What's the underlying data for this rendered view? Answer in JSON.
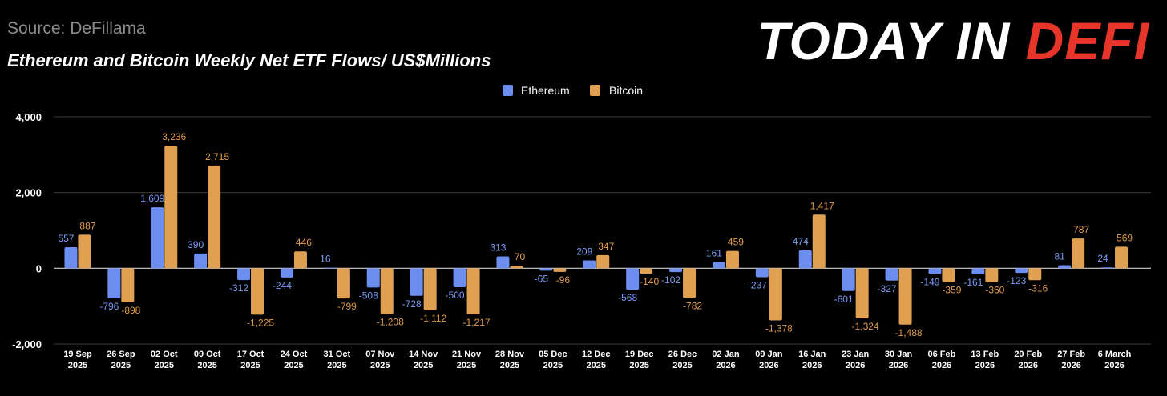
{
  "header": {
    "source": "Source: DeFillama",
    "brand_white": "TODAY IN ",
    "brand_red": "DEFI"
  },
  "colors": {
    "ethereum": "#6b8ef0",
    "bitcoin": "#e0a052",
    "ethereum_label": "#7a9cf5",
    "bitcoin_label": "#e09a4a",
    "brand_red": "#e8352a"
  },
  "chart_data": {
    "type": "bar",
    "title": "Ethereum and Bitcoin Weekly Net ETF Flows/ US$Millions",
    "xlabel": "",
    "ylabel": "",
    "ylim": [
      -2000,
      4000
    ],
    "yticks": [
      "4,000",
      "2,000",
      "0",
      "-2,000"
    ],
    "ytick_values": [
      4000,
      2000,
      0,
      -2000
    ],
    "legend_position": "top-center",
    "categories": [
      [
        "19 Sep",
        "2025"
      ],
      [
        "26 Sep",
        "2025"
      ],
      [
        "02 Oct",
        "2025"
      ],
      [
        "09 Oct",
        "2025"
      ],
      [
        "17 Oct",
        "2025"
      ],
      [
        "24 Oct",
        "2025"
      ],
      [
        "31 Oct",
        "2025"
      ],
      [
        "07 Nov",
        "2025"
      ],
      [
        "14 Nov",
        "2025"
      ],
      [
        "21 Nov",
        "2025"
      ],
      [
        "28 Nov",
        "2025"
      ],
      [
        "05 Dec",
        "2025"
      ],
      [
        "12 Dec",
        "2025"
      ],
      [
        "19 Dec",
        "2025"
      ],
      [
        "26 Dec",
        "2025"
      ],
      [
        "02 Jan",
        "2026"
      ],
      [
        "09 Jan",
        "2026"
      ],
      [
        "16 Jan",
        "2026"
      ],
      [
        "23 Jan",
        "2026"
      ],
      [
        "30 Jan",
        "2026"
      ],
      [
        "06 Feb",
        "2026"
      ],
      [
        "13 Feb",
        "2026"
      ],
      [
        "20 Feb",
        "2026"
      ],
      [
        "27 Feb",
        "2026"
      ],
      [
        "6 March",
        "2026"
      ]
    ],
    "series": [
      {
        "name": "Ethereum",
        "values": [
          557,
          -796,
          1609,
          390,
          -312,
          -244,
          16,
          -508,
          -728,
          -500,
          313,
          -65,
          209,
          -568,
          -102,
          161,
          -237,
          474,
          -601,
          -327,
          -149,
          -161,
          -123,
          81,
          24
        ],
        "labels": [
          "557",
          "-796",
          "1,609",
          "390",
          "-312",
          "-244",
          "16",
          "-508",
          "-728",
          "-500",
          "313",
          "-65",
          "209",
          "-568",
          "-102",
          "161",
          "-237",
          "474",
          "-601",
          "-327",
          "-149",
          "-161",
          "-123",
          "81",
          "24"
        ]
      },
      {
        "name": "Bitcoin",
        "values": [
          887,
          -898,
          3236,
          2715,
          -1225,
          446,
          -799,
          -1208,
          -1112,
          -1217,
          70,
          -96,
          347,
          -140,
          -782,
          459,
          -1378,
          1417,
          -1324,
          -1488,
          -359,
          -360,
          -316,
          787,
          569
        ],
        "labels": [
          "887",
          "-898",
          "3,236",
          "2,715",
          "-1,225",
          "446",
          "-799",
          "-1,208",
          "-1,112",
          "-1,217",
          "70",
          "-96",
          "347",
          "-140",
          "-782",
          "459",
          "-1,378",
          "1,417",
          "-1,324",
          "-1,488",
          "-359",
          "-360",
          "-316",
          "787",
          "569"
        ]
      }
    ]
  }
}
